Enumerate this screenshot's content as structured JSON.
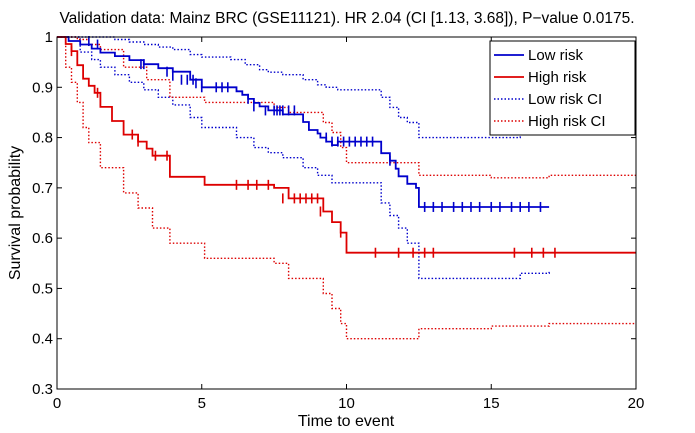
{
  "chart_data": {
    "type": "line",
    "title": "Validation data: Mainz BRC (GSE11121). HR 2.04 (CI [1.13, 3.68]), P−value 0.0175.",
    "xlabel": "Time to event",
    "ylabel": "Survival probability",
    "xlim": [
      0,
      20
    ],
    "ylim": [
      0.3,
      1
    ],
    "xticks": [
      0,
      5,
      10,
      15,
      20
    ],
    "yticks": [
      0.3,
      0.4,
      0.5,
      0.6,
      0.7,
      0.8,
      0.9,
      1
    ],
    "xtick_labels": [
      "0",
      "5",
      "10",
      "15",
      "20"
    ],
    "ytick_labels": [
      "0.3",
      "0.4",
      "0.5",
      "0.6",
      "0.7",
      "0.8",
      "0.9",
      "1"
    ],
    "grid": false,
    "legend_position": "top-right",
    "series": [
      {
        "name": "Low risk",
        "color": "#0000cc",
        "style": "solid",
        "step": true,
        "x": [
          0,
          0.4,
          0.8,
          1.2,
          1.5,
          2.0,
          2.5,
          3.0,
          3.5,
          4.0,
          4.6,
          5.0,
          6.2,
          6.4,
          6.6,
          6.8,
          7.0,
          7.3,
          7.8,
          8.5,
          8.7,
          9.0,
          9.1,
          9.3,
          9.5,
          9.7,
          11.2,
          11.5,
          11.7,
          11.8,
          12.1,
          12.4,
          12.5,
          17.0
        ],
        "y": [
          1,
          0.992,
          0.985,
          0.977,
          0.969,
          0.962,
          0.954,
          0.946,
          0.938,
          0.931,
          0.915,
          0.9,
          0.892,
          0.885,
          0.877,
          0.869,
          0.862,
          0.854,
          0.846,
          0.831,
          0.815,
          0.808,
          0.8,
          0.792,
          0.785,
          0.792,
          0.769,
          0.754,
          0.738,
          0.723,
          0.708,
          0.7,
          0.662,
          0.662
        ],
        "censor_x": [
          1.1,
          1.4,
          2.9,
          3.0,
          3.8,
          4.0,
          4.3,
          4.5,
          4.7,
          4.8,
          5.0,
          5.5,
          5.7,
          5.9,
          6.6,
          6.8,
          7.2,
          7.5,
          7.6,
          7.7,
          7.8,
          8.0,
          8.2,
          9.3,
          9.5,
          9.7,
          9.9,
          10.1,
          10.3,
          10.5,
          10.7,
          10.9,
          11.5,
          12.7,
          13.0,
          13.3,
          13.7,
          14.0,
          14.3,
          14.6,
          15.0,
          15.3,
          15.7,
          16.0,
          16.3,
          16.7
        ],
        "censor_y": [
          0.992,
          0.985,
          0.946,
          0.946,
          0.931,
          0.923,
          0.915,
          0.915,
          0.915,
          0.908,
          0.9,
          0.9,
          0.9,
          0.9,
          0.877,
          0.862,
          0.854,
          0.854,
          0.854,
          0.854,
          0.854,
          0.854,
          0.854,
          0.8,
          0.792,
          0.792,
          0.792,
          0.792,
          0.792,
          0.792,
          0.792,
          0.792,
          0.754,
          0.662,
          0.662,
          0.662,
          0.662,
          0.662,
          0.662,
          0.662,
          0.662,
          0.662,
          0.662,
          0.662,
          0.662,
          0.662
        ]
      },
      {
        "name": "High risk",
        "color": "#dd0000",
        "style": "solid",
        "step": true,
        "x": [
          0,
          0.3,
          0.5,
          0.7,
          0.9,
          1.1,
          1.3,
          1.5,
          1.9,
          2.3,
          2.8,
          3.1,
          3.3,
          3.9,
          5.1,
          7.5,
          8.0,
          9.2,
          9.5,
          9.8,
          10.0,
          20.0
        ],
        "y": [
          1,
          0.986,
          0.972,
          0.944,
          0.917,
          0.903,
          0.889,
          0.861,
          0.833,
          0.806,
          0.792,
          0.778,
          0.764,
          0.722,
          0.706,
          0.7,
          0.679,
          0.653,
          0.632,
          0.611,
          0.571,
          0.571
        ],
        "censor_x": [
          0.5,
          1.4,
          2.6,
          2.8,
          3.4,
          3.8,
          6.2,
          6.6,
          6.9,
          7.3,
          7.8,
          8.2,
          8.4,
          8.6,
          8.8,
          9.0,
          9.1,
          9.8,
          11.0,
          11.8,
          12.3,
          12.7,
          13.0,
          15.8,
          16.4,
          16.8,
          17.2
        ],
        "censor_y": [
          0.972,
          0.889,
          0.806,
          0.792,
          0.764,
          0.764,
          0.706,
          0.706,
          0.706,
          0.706,
          0.679,
          0.679,
          0.679,
          0.679,
          0.679,
          0.679,
          0.653,
          0.611,
          0.571,
          0.571,
          0.571,
          0.571,
          0.571,
          0.571,
          0.571,
          0.571,
          0.571
        ]
      },
      {
        "name": "Low risk CI",
        "color": "#0000cc",
        "style": "dotted",
        "step": true,
        "x": [
          0,
          1.0,
          1.5,
          2.0,
          2.5,
          3.0,
          3.5,
          4.0,
          4.6,
          5.0,
          6.0,
          6.5,
          7.0,
          7.3,
          7.8,
          8.5,
          9.0,
          9.3,
          9.7,
          11.2,
          11.5,
          11.8,
          12.1,
          12.5,
          13.0,
          16.0,
          17.0
        ],
        "y": [
          1,
          1,
          1,
          0.995,
          0.99,
          0.985,
          0.98,
          0.975,
          0.965,
          0.96,
          0.955,
          0.945,
          0.935,
          0.93,
          0.925,
          0.915,
          0.905,
          0.9,
          0.895,
          0.88,
          0.86,
          0.84,
          0.83,
          0.8,
          0.8,
          0.81,
          0.81
        ]
      },
      {
        "name": "Low risk CI",
        "color": "#0000cc",
        "style": "dotted",
        "step": true,
        "x": [
          0,
          0.8,
          1.2,
          1.5,
          2.0,
          2.5,
          3.0,
          3.5,
          4.0,
          4.6,
          5.0,
          6.2,
          6.8,
          7.3,
          7.8,
          8.5,
          9.0,
          9.5,
          11.2,
          11.5,
          11.8,
          12.1,
          12.5,
          13.0,
          16.0,
          17.0
        ],
        "y": [
          1,
          0.97,
          0.955,
          0.94,
          0.925,
          0.91,
          0.895,
          0.88,
          0.865,
          0.84,
          0.82,
          0.8,
          0.78,
          0.77,
          0.76,
          0.74,
          0.725,
          0.71,
          0.67,
          0.645,
          0.62,
          0.59,
          0.52,
          0.52,
          0.53,
          0.535
        ]
      },
      {
        "name": "High risk CI",
        "color": "#dd0000",
        "style": "dotted",
        "step": true,
        "x": [
          0,
          0.3,
          0.7,
          1.1,
          1.5,
          2.3,
          3.1,
          3.9,
          5.1,
          7.5,
          8.0,
          9.2,
          9.5,
          9.8,
          10.0,
          12.5,
          15.0,
          17.0,
          20.0
        ],
        "y": [
          1,
          1,
          0.995,
          0.985,
          0.975,
          0.94,
          0.915,
          0.88,
          0.87,
          0.86,
          0.85,
          0.83,
          0.81,
          0.78,
          0.75,
          0.725,
          0.72,
          0.725,
          0.725
        ]
      },
      {
        "name": "High risk CI",
        "color": "#dd0000",
        "style": "dotted",
        "step": true,
        "x": [
          0,
          0.3,
          0.5,
          0.7,
          0.9,
          1.1,
          1.5,
          2.3,
          2.8,
          3.3,
          3.9,
          5.1,
          7.5,
          8.0,
          9.2,
          9.5,
          9.8,
          10.0,
          12.5,
          15.0,
          17.0,
          20.0
        ],
        "y": [
          1,
          0.94,
          0.91,
          0.87,
          0.82,
          0.79,
          0.74,
          0.69,
          0.66,
          0.62,
          0.59,
          0.56,
          0.55,
          0.52,
          0.49,
          0.46,
          0.43,
          0.4,
          0.42,
          0.425,
          0.43,
          0.43
        ]
      }
    ]
  }
}
